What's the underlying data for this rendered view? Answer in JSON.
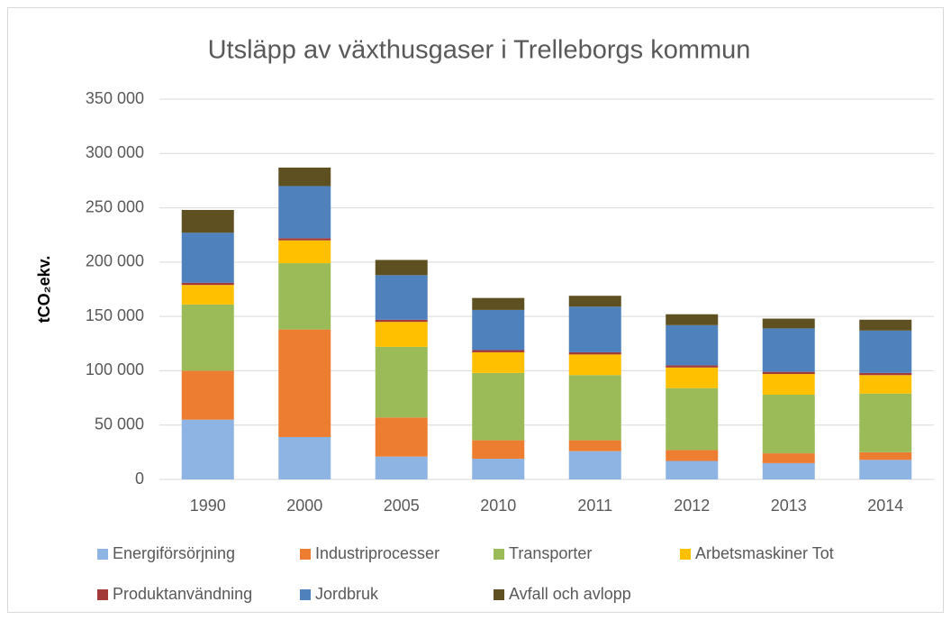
{
  "chart_data": {
    "type": "stacked_bar",
    "title": "Utsläpp av växthusgaser i Trelleborgs kommun",
    "y_label": "tCO₂ekv.",
    "categories": [
      "1990",
      "2000",
      "2005",
      "2010",
      "2011",
      "2012",
      "2013",
      "2014"
    ],
    "series": [
      {
        "name": "Energiförsörjning",
        "color": "#8eb4e3",
        "values": [
          55000,
          39000,
          21000,
          19000,
          26000,
          17000,
          15000,
          18000
        ]
      },
      {
        "name": "Industriprocesser",
        "color": "#ed7d31",
        "values": [
          45000,
          99000,
          36000,
          17000,
          10000,
          10000,
          9000,
          7000
        ]
      },
      {
        "name": "Transporter",
        "color": "#9bbb59",
        "values": [
          61000,
          61000,
          65000,
          62000,
          60000,
          57000,
          54000,
          54000
        ]
      },
      {
        "name": "Arbetsmaskiner Tot",
        "color": "#ffc000",
        "values": [
          18000,
          21000,
          23000,
          19000,
          19000,
          19000,
          19000,
          17000
        ]
      },
      {
        "name": "Produktanvändning",
        "color": "#a33a3a",
        "values": [
          2000,
          2000,
          2000,
          2000,
          2000,
          2000,
          2000,
          2000
        ]
      },
      {
        "name": "Jordbruk",
        "color": "#4f81bd",
        "values": [
          46000,
          48000,
          41000,
          37000,
          42000,
          37000,
          40000,
          39000
        ]
      },
      {
        "name": "Avfall och avlopp",
        "color": "#5e5020",
        "values": [
          21000,
          17000,
          14000,
          11000,
          10000,
          10000,
          9000,
          10000
        ]
      }
    ],
    "ylim": [
      0,
      350000
    ],
    "yticks": [
      0,
      {
        "value": 50000,
        "label": "50 000"
      },
      {
        "value": 100000,
        "label": "100 000"
      },
      {
        "value": 150000,
        "label": "150 000"
      },
      {
        "value": 200000,
        "label": "200 000"
      },
      {
        "value": 250000,
        "label": "250 000"
      },
      {
        "value": 300000,
        "label": "300 000"
      },
      {
        "value": 350000,
        "label": "350 000"
      }
    ],
    "grid": true,
    "legend": "bottom"
  }
}
